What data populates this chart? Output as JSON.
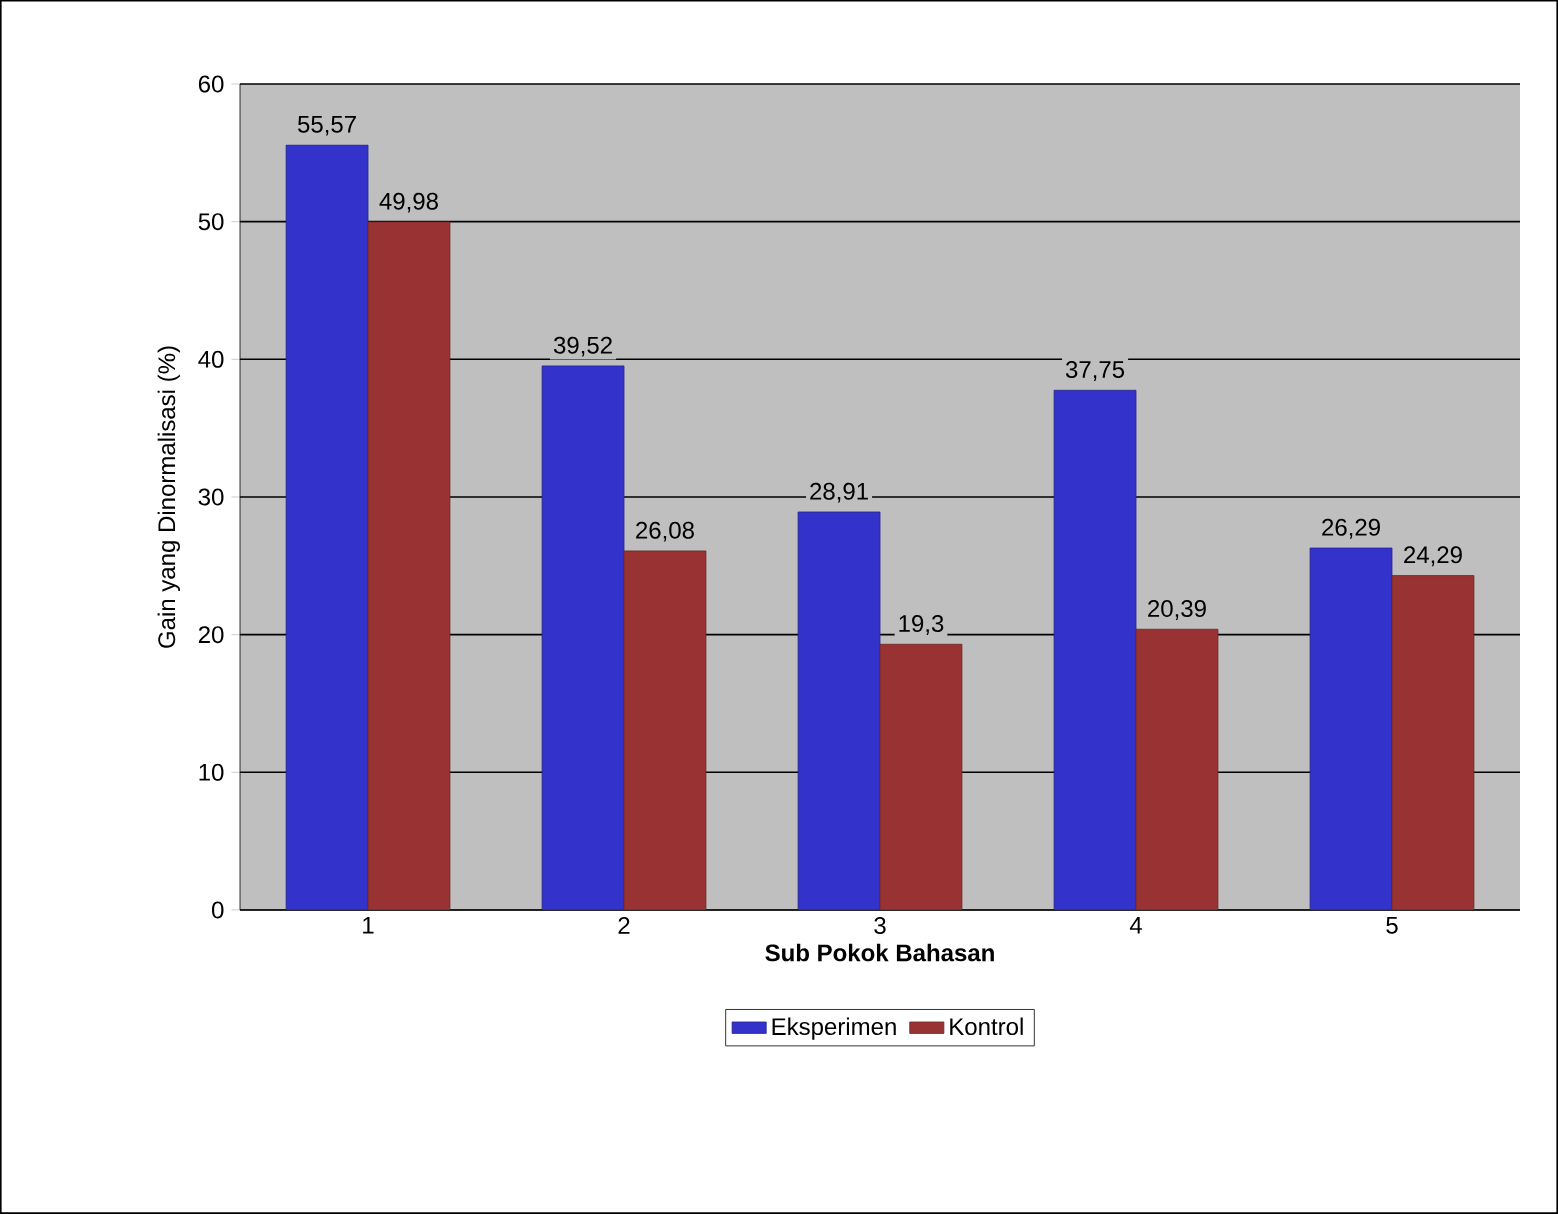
{
  "chart_data": {
    "type": "bar",
    "categories": [
      "1",
      "2",
      "3",
      "4",
      "5"
    ],
    "xlabel": "Sub Pokok Bahasan",
    "ylabel": "Gain yang Dinormalisasi (%)",
    "ylim": [
      0,
      60
    ],
    "yticks": [
      0,
      10,
      20,
      30,
      40,
      50,
      60
    ],
    "grid": "y",
    "legend": "bottom",
    "series": [
      {
        "name": "Eksperimen",
        "color": "#3333cc",
        "values": [
          55.57,
          39.52,
          28.91,
          37.75,
          26.29
        ],
        "value_labels": [
          "55,57",
          "39,52",
          "28,91",
          "37,75",
          "26,29"
        ]
      },
      {
        "name": "Kontrol",
        "color": "#993333",
        "values": [
          49.98,
          26.08,
          19.3,
          20.39,
          24.29
        ],
        "value_labels": [
          "49,98",
          "26,08",
          "19,3",
          "20,39",
          "24,29"
        ]
      }
    ]
  }
}
